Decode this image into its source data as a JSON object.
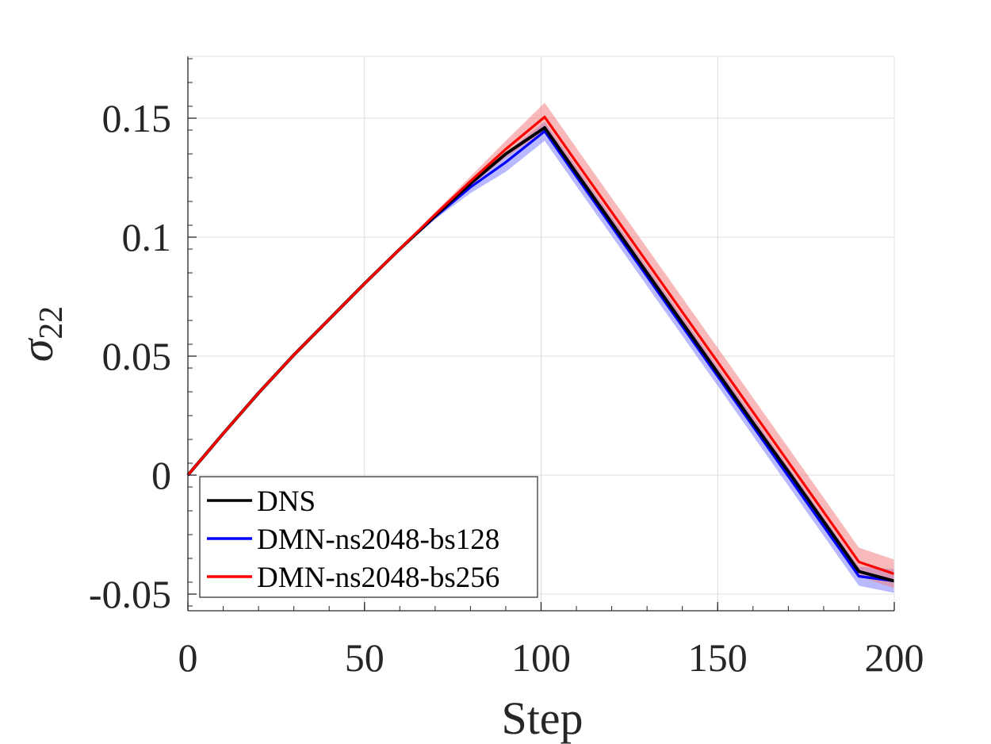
{
  "chart_data": {
    "type": "line",
    "xlabel": "Step",
    "ylabel": "σ",
    "ylabel_subscript": "22",
    "xlim": [
      0,
      200
    ],
    "ylim": [
      -0.057,
      0.176
    ],
    "xticks": [
      0,
      50,
      100,
      150,
      200
    ],
    "xtick_labels": [
      "0",
      "50",
      "100",
      "150",
      "200"
    ],
    "yticks": [
      -0.05,
      0,
      0.05,
      0.1,
      0.15
    ],
    "ytick_labels": [
      "-0.05",
      "0",
      "0.05",
      "0.1",
      "0.15"
    ],
    "grid": true,
    "legend_position": "bottom-left",
    "series": [
      {
        "name": "DNS",
        "color": "#000000",
        "x": [
          0,
          10,
          20,
          30,
          40,
          50,
          60,
          70,
          80,
          90,
          101,
          110,
          120,
          130,
          140,
          150,
          160,
          170,
          180,
          190,
          200
        ],
        "y": [
          0,
          0.0175,
          0.0345,
          0.0505,
          0.0655,
          0.0805,
          0.095,
          0.109,
          0.1225,
          0.135,
          0.146,
          0.127,
          0.106,
          0.085,
          0.064,
          0.043,
          0.022,
          0.0015,
          -0.0195,
          -0.0405,
          -0.0445
        ]
      },
      {
        "name": "DMN-ns2048-bs128",
        "color": "#0000ff",
        "band_color": "#8080ff",
        "x": [
          0,
          10,
          20,
          30,
          40,
          50,
          60,
          70,
          80,
          90,
          101,
          110,
          120,
          130,
          140,
          150,
          160,
          170,
          180,
          190,
          200
        ],
        "y": [
          0,
          0.0175,
          0.0345,
          0.0505,
          0.0655,
          0.0805,
          0.095,
          0.1085,
          0.121,
          0.1315,
          0.1445,
          0.1255,
          0.1045,
          0.0835,
          0.0625,
          0.0415,
          0.0205,
          -0.0005,
          -0.0215,
          -0.0425,
          -0.0445
        ],
        "band_lower": [
          0,
          0.0175,
          0.0345,
          0.0505,
          0.0655,
          0.0805,
          0.0945,
          0.1075,
          0.1185,
          0.1275,
          0.1405,
          0.1215,
          0.1005,
          0.0795,
          0.0585,
          0.0375,
          0.0165,
          -0.0045,
          -0.0255,
          -0.0465,
          -0.0495
        ],
        "band_upper": [
          0,
          0.0175,
          0.0345,
          0.0505,
          0.0655,
          0.0805,
          0.0955,
          0.1095,
          0.1235,
          0.1355,
          0.1485,
          0.1295,
          0.1085,
          0.0875,
          0.0665,
          0.0455,
          0.0245,
          0.0035,
          -0.0175,
          -0.0385,
          -0.0395
        ]
      },
      {
        "name": "DMN-ns2048-bs256",
        "color": "#ff0000",
        "band_color": "#f08080",
        "x": [
          0,
          10,
          20,
          30,
          40,
          50,
          60,
          70,
          80,
          90,
          101,
          110,
          120,
          130,
          140,
          150,
          160,
          170,
          180,
          190,
          200
        ],
        "y": [
          0,
          0.0175,
          0.0345,
          0.0505,
          0.0655,
          0.0805,
          0.095,
          0.1095,
          0.1235,
          0.137,
          0.1505,
          0.1315,
          0.1105,
          0.0895,
          0.0685,
          0.0475,
          0.0265,
          0.0055,
          -0.0155,
          -0.0365,
          -0.0415
        ],
        "band_lower": [
          0,
          0.0175,
          0.0345,
          0.0505,
          0.0655,
          0.0805,
          0.0945,
          0.1085,
          0.1215,
          0.1335,
          0.1445,
          0.1255,
          0.1045,
          0.0835,
          0.0625,
          0.0415,
          0.0205,
          -0.0005,
          -0.0215,
          -0.0425,
          -0.0475
        ],
        "band_upper": [
          0,
          0.0175,
          0.0345,
          0.0505,
          0.0655,
          0.0805,
          0.0955,
          0.1105,
          0.1255,
          0.1405,
          0.1565,
          0.1375,
          0.1165,
          0.0955,
          0.0745,
          0.0535,
          0.0325,
          0.0115,
          -0.0095,
          -0.0305,
          -0.0355
        ]
      }
    ]
  }
}
